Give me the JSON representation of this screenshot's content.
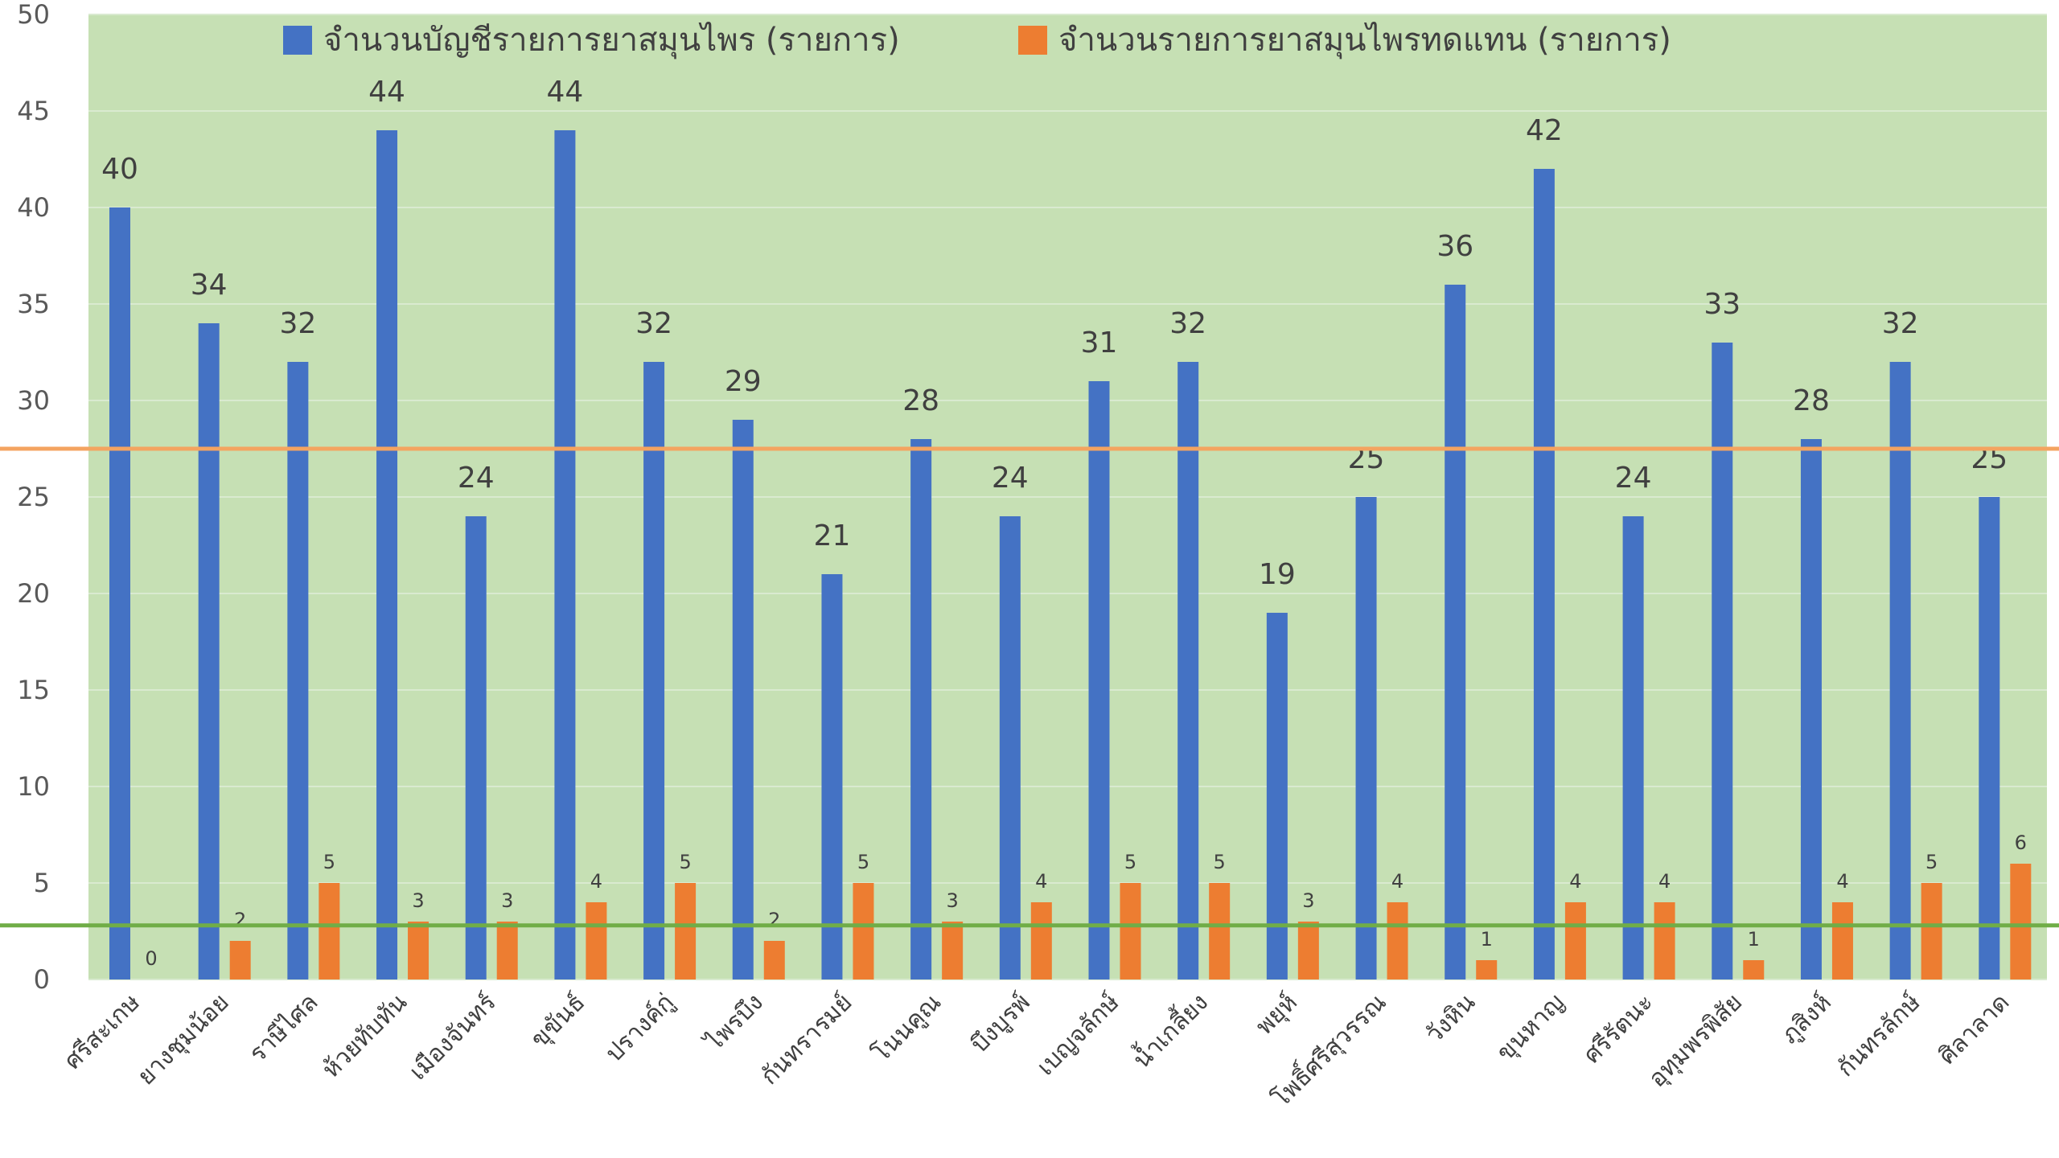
{
  "chart_data": {
    "type": "bar",
    "categories": [
      "ศรีสะเกษ",
      "ยางชุมน้อย",
      "ราษีไศล",
      "ห้วยทับทัน",
      "เมืองจันทร์",
      "ขุขันธ์",
      "ปรางค์กู่",
      "ไพรบึง",
      "กันทรารมย์",
      "โนนคูณ",
      "บึงบูรพ์",
      "เบญจลักษ์",
      "น้ำเกลี้ยง",
      "พยุห์",
      "โพธิ์ศรีสุวรรณ",
      "วังหิน",
      "ขุนหาญ",
      "ศรีรัตนะ",
      "อุทุมพรพิสัย",
      "ภูสิงห์",
      "กันทรลักษ์",
      "ศิลาลาด"
    ],
    "series": [
      {
        "name": "จำนวนบัญชีรายการยาสมุนไพร (รายการ)",
        "color": "#4472C4",
        "values": [
          40,
          34,
          32,
          44,
          24,
          44,
          32,
          29,
          21,
          28,
          24,
          31,
          32,
          19,
          25,
          36,
          42,
          24,
          33,
          28,
          32,
          25
        ]
      },
      {
        "name": "จำนวนรายการยาสมุนไพรทดแทน (รายการ)",
        "color": "#ED7D31",
        "values": [
          0,
          2,
          5,
          3,
          3,
          4,
          5,
          2,
          5,
          3,
          4,
          5,
          5,
          3,
          4,
          1,
          4,
          4,
          1,
          4,
          5,
          6
        ]
      }
    ],
    "ylim": [
      0,
      50
    ],
    "yticks": [
      0,
      5,
      10,
      15,
      20,
      25,
      30,
      35,
      40,
      45,
      50
    ],
    "reference_lines": [
      {
        "value": 27.5,
        "color": "#F4A460"
      },
      {
        "value": 2.8,
        "color": "#70AD47"
      }
    ],
    "legend_position": "top",
    "plot_background": "#C6E0B4",
    "grid": true
  }
}
